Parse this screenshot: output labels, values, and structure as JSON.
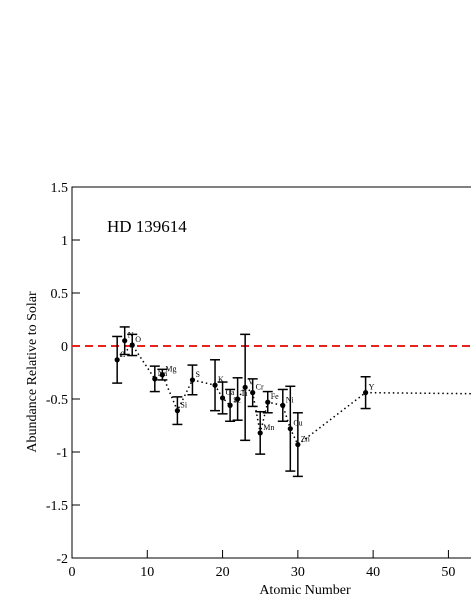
{
  "chart_data": {
    "type": "errorbar-scatter",
    "annotation": "HD 139614",
    "xlabel": "Atomic Number",
    "ylabel": "Abundance Relative to Solar",
    "xlim": [
      0,
      53
    ],
    "xticks": [
      0,
      10,
      20,
      30,
      40,
      50
    ],
    "ylim": [
      -2,
      1.5
    ],
    "yticks": [
      -2,
      -1.5,
      -1,
      -0.5,
      0,
      0.5,
      1,
      1.5
    ],
    "reference_line": {
      "value": 0,
      "color": "#e8231e"
    },
    "color": "#000000",
    "x": [
      6,
      7,
      8,
      11,
      12,
      14,
      16,
      19,
      20,
      21,
      22,
      23,
      24,
      25,
      26,
      28,
      29,
      30,
      39
    ],
    "labels": [
      "C",
      "N",
      "O",
      "Na",
      "Mg",
      "Si",
      "S",
      "K",
      "Ca",
      "Sc",
      "Ti",
      "V",
      "Cr",
      "Mn",
      "Fe",
      "Ni",
      "Cu",
      "Zn",
      "Y"
    ],
    "values": [
      -0.13,
      0.05,
      0.01,
      -0.31,
      -0.27,
      -0.61,
      -0.32,
      -0.37,
      -0.49,
      -0.56,
      -0.5,
      -0.39,
      -0.44,
      -0.82,
      -0.53,
      -0.56,
      -0.78,
      -0.93,
      -0.44
    ],
    "errors": [
      0.22,
      0.13,
      0.1,
      0.12,
      0.05,
      0.13,
      0.14,
      0.24,
      0.15,
      0.15,
      0.2,
      0.5,
      0.13,
      0.2,
      0.1,
      0.15,
      0.4,
      0.3,
      0.15
    ],
    "line": {
      "x": [
        6,
        8,
        11,
        12,
        14,
        16,
        19,
        20,
        21,
        22,
        23,
        24,
        25,
        26,
        28,
        29,
        30,
        39,
        53
      ],
      "y": [
        -0.13,
        0.01,
        -0.31,
        -0.27,
        -0.61,
        -0.32,
        -0.37,
        -0.49,
        -0.56,
        -0.5,
        -0.39,
        -0.44,
        -0.82,
        -0.53,
        -0.56,
        -0.78,
        -0.93,
        -0.44,
        -0.45
      ]
    }
  }
}
